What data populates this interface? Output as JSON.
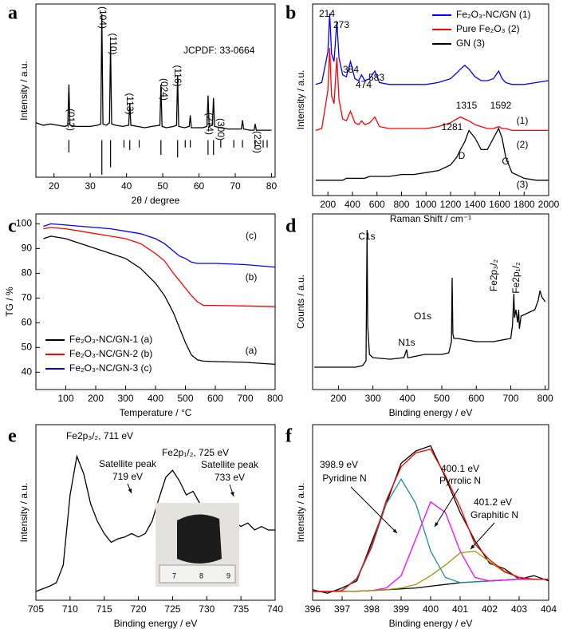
{
  "chart_data": [
    {
      "type": "line",
      "label": "a",
      "xlabel": "2θ / degree",
      "ylabel": "Intensity / a.u.",
      "xlim": [
        15,
        81
      ],
      "xticks": [
        20,
        30,
        40,
        50,
        60,
        70,
        80
      ],
      "ylim": [
        -30,
        110
      ],
      "x": [
        15,
        17,
        19,
        21,
        23,
        23.8,
        24.1,
        24.4,
        26,
        28,
        30,
        32,
        32.9,
        33.2,
        33.5,
        34.5,
        35.3,
        35.6,
        35.9,
        37,
        39,
        40.6,
        40.9,
        41.2,
        43,
        45,
        47,
        49.2,
        49.5,
        49.8,
        51,
        53,
        53.8,
        54.1,
        54.4,
        56,
        57.3,
        57.6,
        57.9,
        59,
        61,
        62.2,
        62.5,
        62.8,
        63.7,
        64.0,
        64.3,
        66,
        68,
        70,
        71.7,
        72,
        72.3,
        74,
        75.2,
        75.5,
        75.8,
        77,
        79,
        80
      ],
      "series": [
        {
          "color": "#000000",
          "values": [
            14,
            12,
            13,
            12,
            11,
            12,
            45,
            12,
            11,
            11,
            11,
            12,
            13,
            102,
            13,
            12,
            14,
            78,
            13,
            12,
            11,
            12,
            30,
            12,
            11,
            10,
            11,
            12,
            45,
            11,
            10,
            11,
            12,
            52,
            11,
            10,
            11,
            20,
            10,
            10,
            10,
            11,
            36,
            11,
            12,
            34,
            11,
            10,
            9,
            9,
            9,
            16,
            9,
            8,
            8,
            13,
            8,
            8,
            8,
            8
          ]
        },
        {
          "color": "#000000",
          "style": "stick",
          "x": [
            24.1,
            33.2,
            35.6,
            39.3,
            40.9,
            43.5,
            49.5,
            54.1,
            56.2,
            57.6,
            62.5,
            64.0,
            66.0,
            69.6,
            72.0,
            75.5,
            77.7,
            78.8
          ],
          "values": [
            -10,
            -28,
            -22,
            -6,
            -8,
            -6,
            -12,
            -14,
            -6,
            -6,
            -12,
            -12,
            -6,
            -6,
            -6,
            -6,
            -6,
            -6
          ]
        }
      ],
      "annotations": [
        "(012)",
        "(104)",
        "(110)",
        "(113)",
        "(024)",
        "(116)",
        "(214)",
        "(300)",
        "(220)",
        "JCPDF: 33-0664"
      ]
    },
    {
      "type": "line",
      "label": "b",
      "xlabel": "Raman Shift / cm⁻¹",
      "ylabel": "Intensity / a.u.",
      "xlim": [
        75,
        2000
      ],
      "xticks": [
        200,
        400,
        600,
        800,
        1000,
        1200,
        1400,
        1600,
        1800,
        2000
      ],
      "ylim": [
        0,
        100
      ],
      "x": [
        100,
        150,
        200,
        214,
        230,
        250,
        273,
        290,
        320,
        350,
        384,
        420,
        450,
        474,
        500,
        540,
        583,
        620,
        700,
        800,
        900,
        1000,
        1100,
        1200,
        1250,
        1281,
        1315,
        1350,
        1400,
        1450,
        1500,
        1550,
        1592,
        1620,
        1650,
        1700,
        1800,
        1900,
        2000
      ],
      "legend": "upper right",
      "series": [
        {
          "name": "GN (3)",
          "color": "#000000",
          "values": [
            8,
            8,
            8,
            8,
            8,
            8,
            8,
            8,
            8,
            9,
            9,
            9,
            9,
            9,
            9,
            10,
            10,
            10,
            10,
            11,
            11,
            12,
            13,
            16,
            20,
            24,
            28,
            34,
            30,
            24,
            24,
            30,
            35,
            30,
            20,
            12,
            9,
            8,
            8
          ]
        },
        {
          "name": "Pure Fe₂O₃ (2)",
          "color": "#ff0000",
          "values": [
            34,
            35,
            55,
            77,
            52,
            48,
            72,
            50,
            40,
            39,
            44,
            38,
            37,
            39,
            37,
            38,
            41,
            36,
            35,
            35,
            35,
            35,
            36,
            38,
            40,
            41,
            40,
            39,
            37,
            36,
            35,
            35,
            36,
            35,
            35,
            34,
            34,
            34,
            34
          ]
        },
        {
          "name": "Fe₂O₃-NC/GN (1)",
          "color": "#0000ff",
          "values": [
            58,
            59,
            75,
            95,
            74,
            70,
            91,
            72,
            63,
            62,
            70,
            61,
            60,
            63,
            60,
            61,
            65,
            59,
            58,
            58,
            58,
            58,
            59,
            61,
            64,
            66,
            68,
            66,
            62,
            60,
            60,
            61,
            65,
            61,
            59,
            58,
            58,
            59,
            60
          ]
        }
      ],
      "annotations": [
        "214",
        "273",
        "384",
        "474",
        "583",
        "1315",
        "1592",
        "1281",
        "D",
        "G",
        "(1)",
        "(2)",
        "(3)"
      ]
    },
    {
      "type": "line",
      "label": "c",
      "xlabel": "Temperature / °C",
      "ylabel": "TG / %",
      "xlim": [
        0,
        800
      ],
      "xticks": [
        100,
        200,
        300,
        400,
        500,
        600,
        700,
        800
      ],
      "ylim": [
        33,
        104
      ],
      "yticks": [
        40,
        50,
        60,
        70,
        80,
        90,
        100
      ],
      "x": [
        25,
        50,
        100,
        150,
        200,
        250,
        300,
        350,
        400,
        430,
        460,
        480,
        500,
        520,
        540,
        560,
        600,
        700,
        800
      ],
      "legend": "lower left",
      "series": [
        {
          "name": "Fe₂O₃-NC/GN-1 (a)",
          "color": "#000000",
          "values": [
            94,
            95,
            94,
            92,
            90,
            88,
            86,
            82,
            76,
            71,
            64,
            58,
            52,
            47,
            45,
            44.5,
            44.3,
            44,
            43.2
          ]
        },
        {
          "name": "Fe₂O₃-NC/GN-2 (b)",
          "color": "#ff0000",
          "values": [
            98,
            98.5,
            98,
            97,
            96,
            95,
            94,
            92,
            88,
            85,
            80,
            77,
            74,
            71,
            68.5,
            67,
            67,
            66.8,
            66.5
          ]
        },
        {
          "name": "Fe₂O₃-NC/GN-3 (c)",
          "color": "#0000ff",
          "values": [
            99,
            100,
            99.5,
            99,
            98.5,
            98,
            97,
            96,
            94,
            92,
            89,
            87,
            86,
            84.5,
            84,
            84,
            84,
            83.5,
            82.5
          ]
        }
      ],
      "annotations": [
        "(c)",
        "(b)",
        "(a)"
      ]
    },
    {
      "type": "line",
      "label": "d",
      "xlabel": "Binding energy / eV",
      "ylabel": "Counts / a.u.",
      "xlim": [
        125,
        810
      ],
      "xticks": [
        200,
        300,
        400,
        500,
        600,
        700,
        800
      ],
      "ylim": [
        0,
        110
      ],
      "x": [
        130,
        200,
        250,
        270,
        280,
        283,
        285,
        290,
        300,
        350,
        390,
        398,
        401,
        405,
        450,
        500,
        520,
        528,
        530,
        532,
        535,
        545,
        600,
        650,
        700,
        705,
        709,
        711,
        715,
        720,
        723,
        725,
        730,
        750,
        770,
        780,
        785,
        790,
        800
      ],
      "series": [
        {
          "color": "#000000",
          "values": [
            14,
            14,
            14,
            15,
            18,
            100,
            40,
            22,
            20,
            19,
            20,
            25,
            20,
            20,
            22,
            22,
            23,
            30,
            70,
            35,
            32,
            32,
            30,
            30,
            32,
            40,
            60,
            45,
            50,
            42,
            50,
            38,
            46,
            48,
            50,
            56,
            62,
            58,
            55
          ]
        }
      ],
      "annotations": [
        "C1s",
        "N1s",
        "O1s",
        "Fe2p₃/₂",
        "Fe2p₁/₂"
      ]
    },
    {
      "type": "line",
      "label": "e",
      "xlabel": "Binding energy / eV",
      "ylabel": "Intensity / a.u.",
      "xlim": [
        705,
        740
      ],
      "xticks": [
        705,
        710,
        715,
        720,
        725,
        730,
        735,
        740
      ],
      "ylim": [
        0,
        100
      ],
      "x": [
        705,
        707,
        708,
        709,
        710,
        711,
        712,
        713,
        714,
        715,
        716,
        717,
        718,
        719,
        720,
        721,
        722,
        723,
        724,
        725,
        726,
        727,
        728,
        729,
        730,
        731,
        732,
        733,
        734,
        735,
        736,
        737,
        738,
        739,
        740
      ],
      "series": [
        {
          "color": "#000000",
          "values": [
            5,
            8,
            10,
            20,
            60,
            82,
            72,
            55,
            45,
            38,
            33,
            35,
            36,
            38,
            36,
            38,
            45,
            58,
            70,
            74,
            68,
            60,
            62,
            55,
            52,
            48,
            50,
            52,
            45,
            42,
            44,
            40,
            42,
            40,
            40
          ]
        }
      ],
      "annotations": [
        "Fe2p₃/₂, 711 eV",
        "Satellite peak",
        "719 eV",
        "Fe2p₁/₂, 725 eV",
        "Satellite peak",
        "733 eV"
      ],
      "inset_labels": [
        "7",
        "8",
        "9"
      ]
    },
    {
      "type": "line",
      "label": "f",
      "xlabel": "Binding energy / eV",
      "ylabel": "Intensity / a.u.",
      "xlim": [
        396,
        404
      ],
      "xticks": [
        396,
        397,
        398,
        399,
        400,
        401,
        402,
        403,
        404
      ],
      "ylim": [
        0,
        100
      ],
      "x": [
        396,
        396.5,
        397,
        397.5,
        398,
        398.5,
        399,
        399.5,
        400,
        400.5,
        401,
        401.5,
        402,
        402.5,
        403,
        403.5,
        404
      ],
      "series": [
        {
          "color": "#000000",
          "values": [
            6,
            4,
            7,
            11,
            33,
            55,
            78,
            85,
            88,
            70,
            50,
            34,
            21,
            18,
            12,
            14,
            11
          ]
        },
        {
          "color": "#000000",
          "values": [
            5,
            5,
            5,
            5.2,
            5.5,
            6,
            6.5,
            7,
            8,
            9,
            10,
            10.5,
            11,
            11.5,
            12,
            12,
            12
          ]
        },
        {
          "color": "#1a8f8f",
          "values": [
            5,
            5,
            5.5,
            12,
            30,
            55,
            69,
            55,
            28,
            13,
            10,
            10.5,
            11,
            11.5,
            12,
            12,
            12
          ]
        },
        {
          "color": "#ff00ff",
          "values": [
            5,
            5,
            5,
            5.2,
            5.5,
            7,
            14,
            35,
            56,
            50,
            28,
            13,
            11,
            11.5,
            12,
            12,
            12
          ]
        },
        {
          "color": "#999900",
          "values": [
            5,
            5,
            5,
            5.2,
            5.5,
            6,
            7,
            9,
            14,
            20,
            27,
            28,
            22,
            16,
            13,
            12,
            12
          ]
        },
        {
          "color": "#ff0000",
          "values": [
            5,
            5,
            5.5,
            12.5,
            31,
            57,
            76,
            84,
            86,
            71,
            53,
            32,
            23,
            16.5,
            13,
            12,
            12
          ]
        }
      ],
      "annotations": [
        "398.9 eV",
        "Pyridine N",
        "400.1 eV",
        "Pyrrolic N",
        "401.2 eV",
        "Graphitic N"
      ]
    }
  ]
}
